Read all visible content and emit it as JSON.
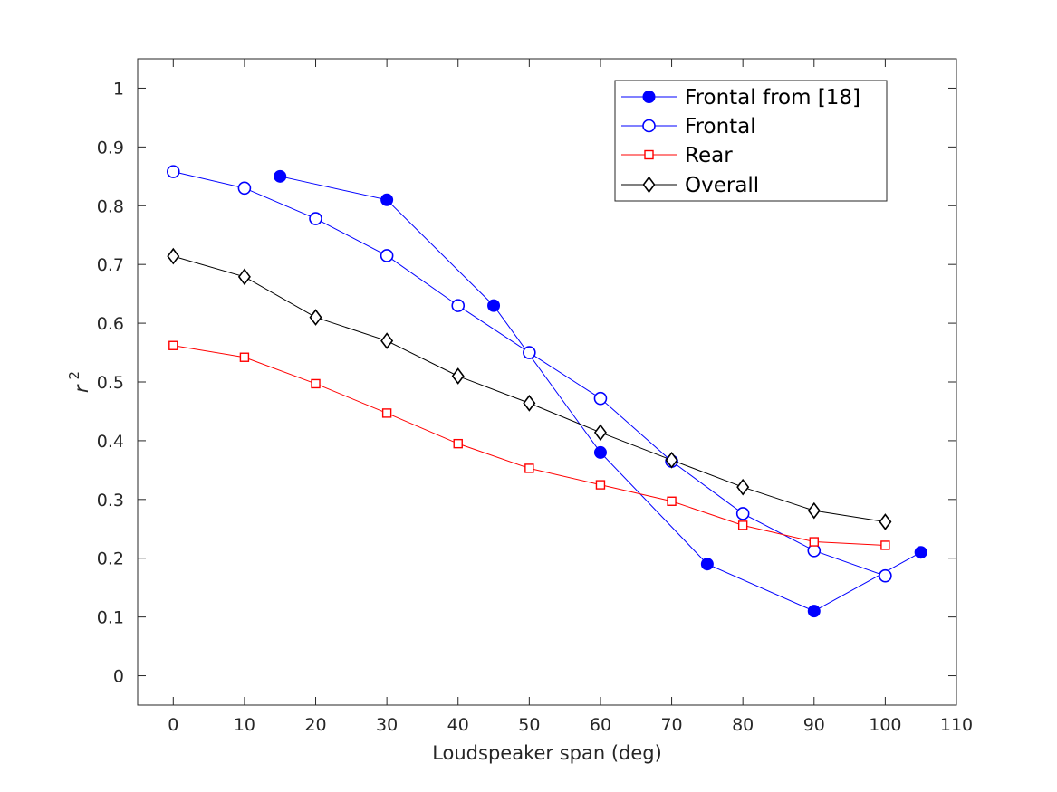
{
  "chart_data": {
    "type": "line",
    "xlabel": "Loudspeaker span (deg)",
    "ylabel": "r",
    "ylabel_superscript": "2",
    "xlim": [
      -5,
      110
    ],
    "ylim": [
      -0.05,
      1.05
    ],
    "xticks": [
      0,
      10,
      20,
      30,
      40,
      50,
      60,
      70,
      80,
      90,
      100,
      110
    ],
    "yticks": [
      0,
      0.1,
      0.2,
      0.3,
      0.4,
      0.5,
      0.6,
      0.7,
      0.8,
      0.9,
      1
    ],
    "grid": false,
    "legend_position": "top-right",
    "series": [
      {
        "name": "Frontal from [18]",
        "color": "#0000ff",
        "marker": "filled-circle",
        "x": [
          15,
          30,
          45,
          60,
          75,
          90,
          105
        ],
        "y": [
          0.85,
          0.81,
          0.63,
          0.38,
          0.19,
          0.11,
          0.21
        ]
      },
      {
        "name": "Frontal",
        "color": "#0000ff",
        "marker": "open-circle",
        "x": [
          0,
          10,
          20,
          30,
          40,
          50,
          60,
          70,
          80,
          90,
          100
        ],
        "y": [
          0.858,
          0.83,
          0.778,
          0.715,
          0.63,
          0.55,
          0.472,
          0.365,
          0.276,
          0.213,
          0.17
        ]
      },
      {
        "name": "Rear",
        "color": "#ff0000",
        "marker": "open-square",
        "x": [
          0,
          10,
          20,
          30,
          40,
          50,
          60,
          70,
          80,
          90,
          100
        ],
        "y": [
          0.562,
          0.542,
          0.497,
          0.447,
          0.395,
          0.353,
          0.325,
          0.297,
          0.256,
          0.228,
          0.222
        ]
      },
      {
        "name": "Overall",
        "color": "#000000",
        "marker": "open-diamond",
        "x": [
          0,
          10,
          20,
          30,
          40,
          50,
          60,
          70,
          80,
          90,
          100
        ],
        "y": [
          0.714,
          0.679,
          0.61,
          0.57,
          0.51,
          0.464,
          0.414,
          0.367,
          0.321,
          0.281,
          0.262
        ]
      }
    ]
  }
}
